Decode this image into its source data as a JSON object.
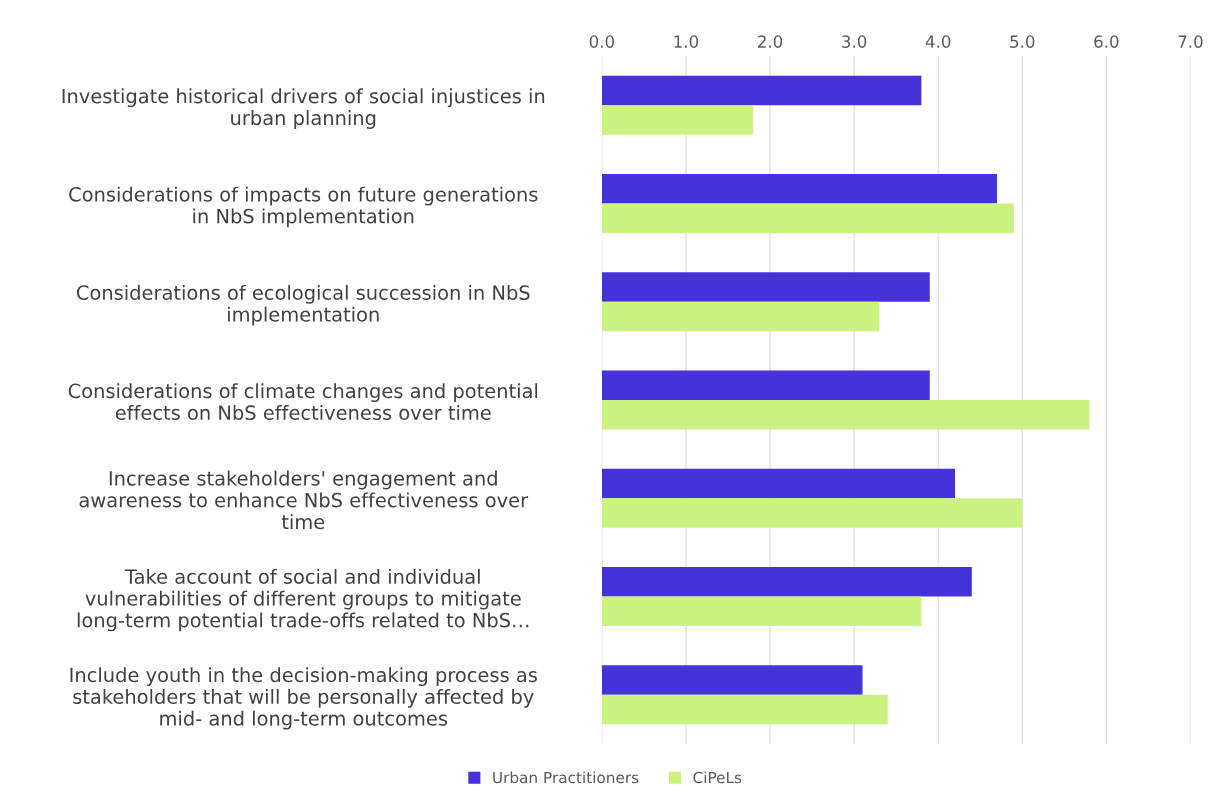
{
  "chart_data": {
    "type": "bar",
    "orientation": "horizontal",
    "categories": [
      "Investigate historical drivers of social injustices in\nurban planning",
      "Considerations of impacts on future generations\nin NbS implementation",
      "Considerations of ecological succession in NbS\nimplementation",
      "Considerations of climate changes and potential\neffects on NbS effectiveness over time",
      "Increase stakeholders' engagement and\nawareness to enhance NbS effectiveness over\ntime",
      "Take account of social and individual\nvulnerabilities of different groups to mitigate\nlong-term potential trade-offs related to NbS…",
      "Include youth in the decision-making process as\nstakeholders that will be personally affected by\nmid- and long-term outcomes"
    ],
    "series": [
      {
        "name": "Urban Practitioners",
        "color": "#4433d6",
        "values": [
          3.8,
          4.7,
          3.9,
          3.9,
          4.2,
          4.4,
          3.1
        ]
      },
      {
        "name": "CiPeLs",
        "color": "#ccf382",
        "values": [
          1.8,
          4.9,
          3.3,
          5.8,
          5.0,
          3.8,
          3.4
        ]
      }
    ],
    "xlim": [
      0,
      7
    ],
    "xticks": [
      {
        "value": 0,
        "label": "0.0"
      },
      {
        "value": 1,
        "label": "1.0"
      },
      {
        "value": 2,
        "label": "2.0"
      },
      {
        "value": 3,
        "label": "3.0"
      },
      {
        "value": 4,
        "label": "4.0"
      },
      {
        "value": 5,
        "label": "5.0"
      },
      {
        "value": 6,
        "label": "6.0"
      },
      {
        "value": 7,
        "label": "7.0"
      }
    ],
    "grid": "x",
    "legend": "bottom"
  }
}
